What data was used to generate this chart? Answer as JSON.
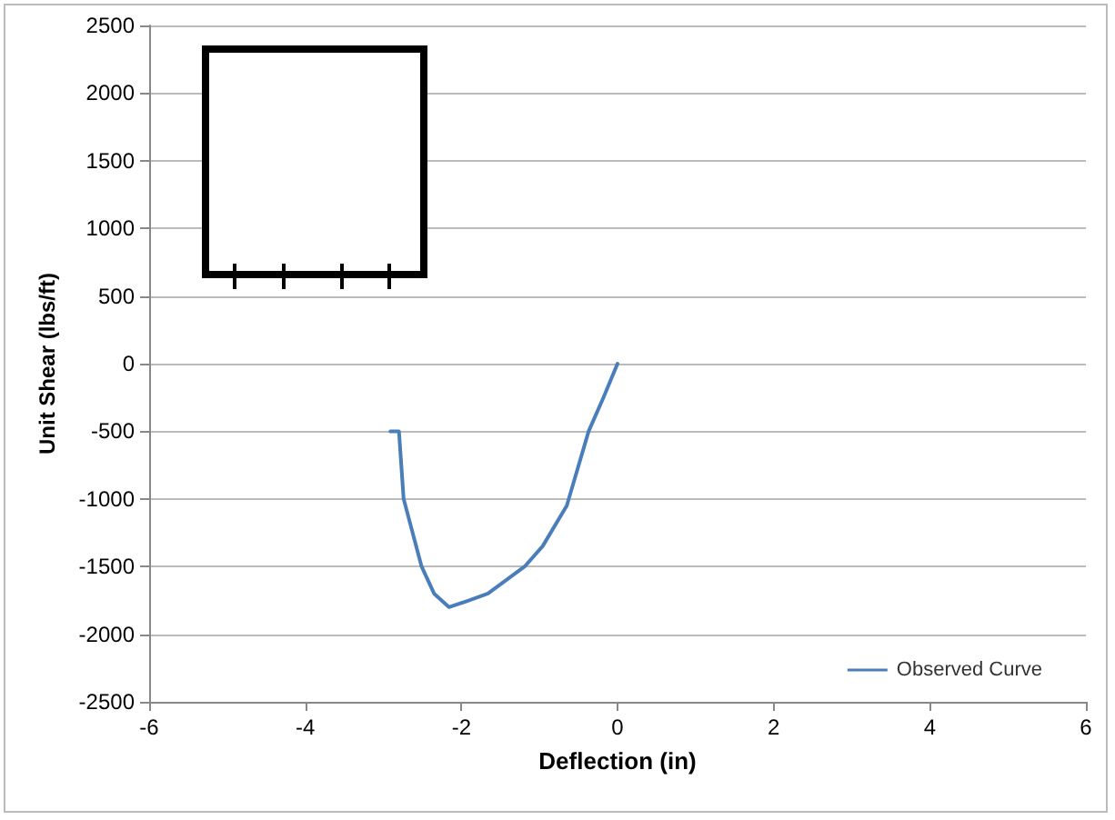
{
  "chart_data": {
    "type": "line",
    "xlabel": "Deflection (in)",
    "ylabel": "Unit Shear (lbs/ft)",
    "series": [
      {
        "name": "Observed Curve",
        "color": "#4a7ebb",
        "x": [
          -2.91,
          -2.8,
          -2.74,
          -2.51,
          -2.35,
          -2.16,
          -1.9,
          -1.66,
          -1.19,
          -0.96,
          -0.65,
          -0.37,
          -0.18,
          0
        ],
        "values": [
          -500,
          -500,
          -1000,
          -1500,
          -1700,
          -1800,
          -1750,
          -1700,
          -1500,
          -1350,
          -1050,
          -500,
          -250,
          0
        ]
      }
    ],
    "xlim": [
      -6,
      6
    ],
    "xticks": [
      -6,
      -4,
      -2,
      0,
      2,
      4,
      6
    ],
    "ylim": [
      -2500,
      2500
    ],
    "yticks": [
      -2500,
      -2000,
      -1500,
      -1000,
      -500,
      0,
      500,
      1000,
      1500,
      2000,
      2500
    ],
    "grid": "y",
    "legend": "bottom right",
    "marker": "none",
    "line_style": "solid"
  }
}
